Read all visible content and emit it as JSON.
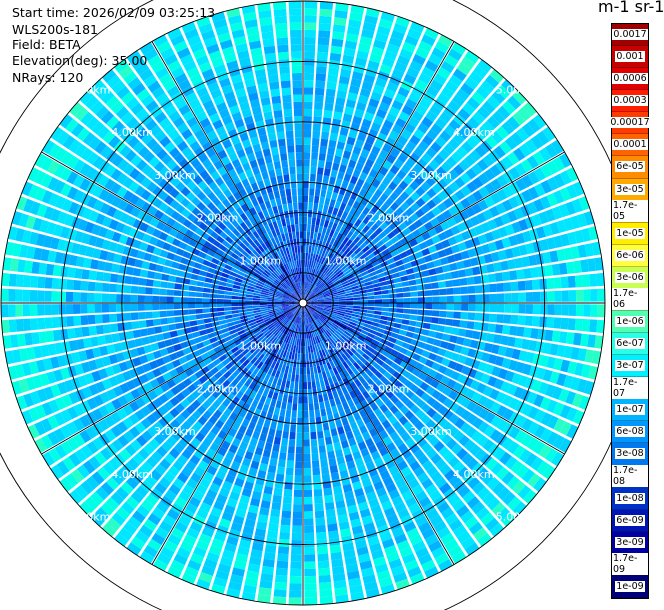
{
  "info": {
    "start_time": "Start time: 2026/02/09 03:25:13",
    "instrument": "WLS200s-181",
    "field": "Field: BETA",
    "elevation": "Elevation(deg): 35.00",
    "nrays": "NRays: 120"
  },
  "colorbar": {
    "units": "m-1 sr-1",
    "labels": [
      "0.0017",
      "0.001",
      "0.0006",
      "0.0003",
      "0.00017",
      "0.0001",
      "6e-05",
      "3e-05",
      "1.7e-05",
      "1e-05",
      "6e-06",
      "3e-06",
      "1.7e-06",
      "1e-06",
      "6e-07",
      "3e-07",
      "1.7e-07",
      "1e-07",
      "6e-08",
      "3e-08",
      "1.7e-08",
      "1e-08",
      "6e-09",
      "3e-09",
      "1.7e-09",
      "1e-09"
    ],
    "colors": [
      "#a00000",
      "#c80000",
      "#e00000",
      "#ff1e00",
      "#ff3c00",
      "#ff6400",
      "#ff8c00",
      "#ffaa00",
      "#ffcc00",
      "#ffee00",
      "#ffff40",
      "#c8ff50",
      "#80ff80",
      "#50ffb4",
      "#28ffe6",
      "#00f0ff",
      "#00d2ff",
      "#00b4ff",
      "#0096ff",
      "#0078f0",
      "#0050dc",
      "#0032c8",
      "#0014b4",
      "#0000a0",
      "#00008c",
      "#000078"
    ]
  },
  "range_rings": {
    "labels": [
      "1.00km",
      "2.00km",
      "3.00km",
      "4.00km",
      "5.00km"
    ]
  }
}
